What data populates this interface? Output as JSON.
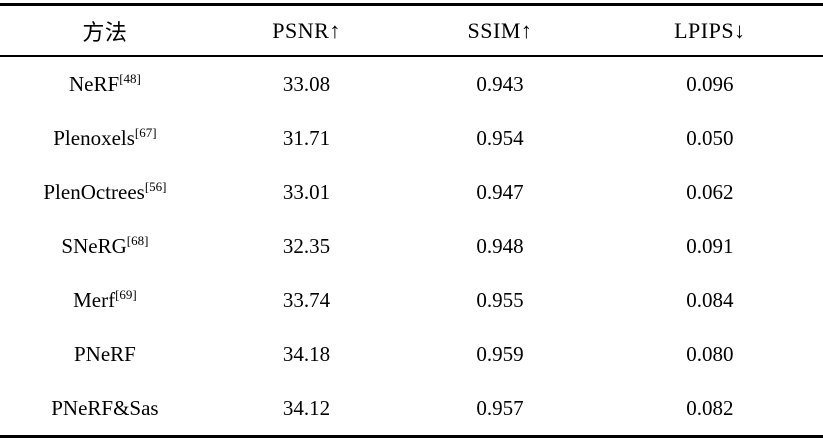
{
  "table": {
    "headers": [
      "方法",
      "PSNR↑",
      "SSIM↑",
      "LPIPS↓"
    ],
    "rows": [
      {
        "method": "NeRF",
        "ref": "[48]",
        "psnr": "33.08",
        "ssim": "0.943",
        "lpips": "0.096"
      },
      {
        "method": "Plenoxels",
        "ref": "[67]",
        "psnr": "31.71",
        "ssim": "0.954",
        "lpips": "0.050"
      },
      {
        "method": "PlenOctrees",
        "ref": "[56]",
        "psnr": "33.01",
        "ssim": "0.947",
        "lpips": "0.062"
      },
      {
        "method": "SNeRG",
        "ref": "[68]",
        "psnr": "32.35",
        "ssim": "0.948",
        "lpips": "0.091"
      },
      {
        "method": "Merf",
        "ref": "[69]",
        "psnr": "33.74",
        "ssim": "0.955",
        "lpips": "0.084"
      },
      {
        "method": "PNeRF",
        "ref": "",
        "psnr": "34.18",
        "ssim": "0.959",
        "lpips": "0.080"
      },
      {
        "method": "PNeRF&Sas",
        "ref": "",
        "psnr": "34.12",
        "ssim": "0.957",
        "lpips": "0.082"
      }
    ]
  },
  "chart_data": {
    "type": "table",
    "columns": [
      "方法",
      "PSNR↑",
      "SSIM↑",
      "LPIPS↓"
    ],
    "rows": [
      [
        "NeRF[48]",
        33.08,
        0.943,
        0.096
      ],
      [
        "Plenoxels[67]",
        31.71,
        0.954,
        0.05
      ],
      [
        "PlenOctrees[56]",
        33.01,
        0.947,
        0.062
      ],
      [
        "SNeRG[68]",
        32.35,
        0.948,
        0.091
      ],
      [
        "Merf[69]",
        33.74,
        0.955,
        0.084
      ],
      [
        "PNeRF",
        34.18,
        0.959,
        0.08
      ],
      [
        "PNeRF&Sas",
        34.12,
        0.957,
        0.082
      ]
    ]
  }
}
